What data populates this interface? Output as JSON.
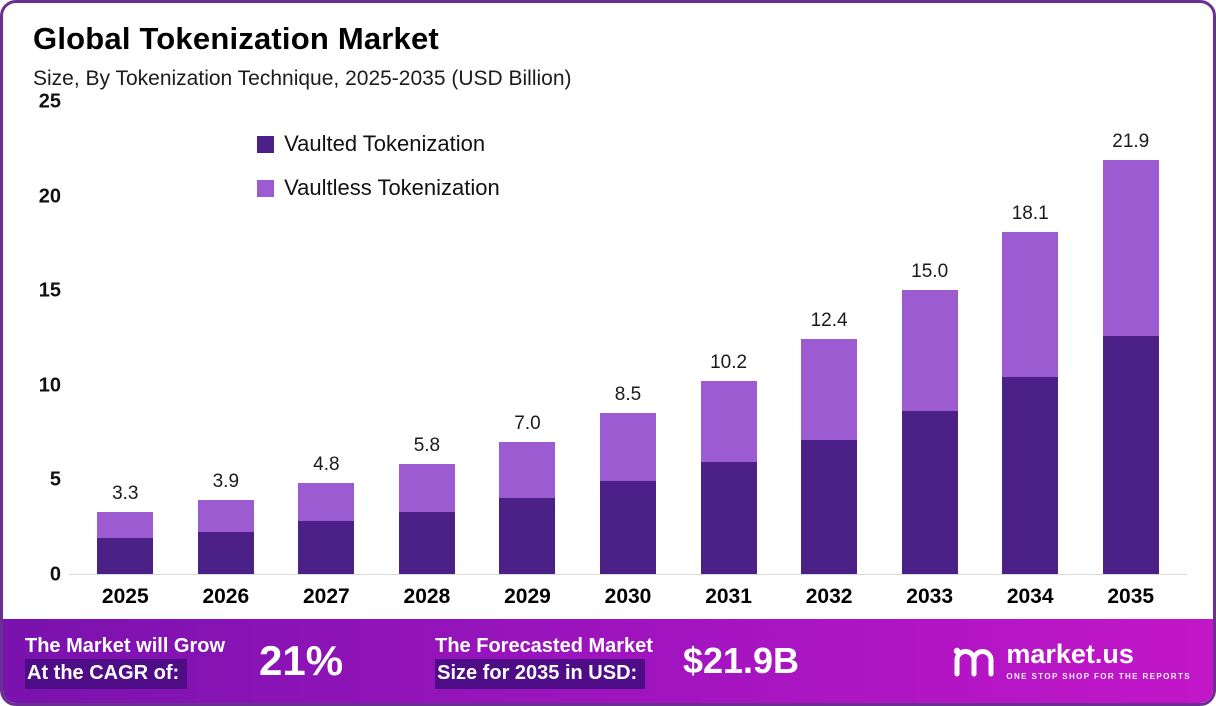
{
  "header": {
    "title": "Global Tokenization Market",
    "subtitle": "Size, By Tokenization Technique, 2025-2035 (USD Billion)"
  },
  "chart_data": {
    "type": "bar",
    "stacked": true,
    "title": "Global Tokenization Market Size, By Tokenization Technique, 2025-2035 (USD Billion)",
    "categories": [
      "2025",
      "2026",
      "2027",
      "2028",
      "2029",
      "2030",
      "2031",
      "2032",
      "2033",
      "2034",
      "2035"
    ],
    "series": [
      {
        "name": "Vaulted Tokenization",
        "color": "#4C2187",
        "values": [
          1.9,
          2.2,
          2.8,
          3.3,
          4.0,
          4.9,
          5.9,
          7.1,
          8.6,
          10.4,
          12.6
        ]
      },
      {
        "name": "Vaultless Tokenization",
        "color": "#9D5BD2",
        "values": [
          1.4,
          1.7,
          2.0,
          2.5,
          3.0,
          3.6,
          4.3,
          5.3,
          6.4,
          7.7,
          9.3
        ]
      }
    ],
    "totals": [
      "3.3",
      "3.9",
      "4.8",
      "5.8",
      "7.0",
      "8.5",
      "10.2",
      "12.4",
      "15.0",
      "18.1",
      "21.9"
    ],
    "yticks": [
      0,
      5,
      10,
      15,
      20,
      25
    ],
    "ylim": [
      0,
      25
    ],
    "grid": false,
    "legend_position": "upper-left-inside"
  },
  "footer": {
    "cagr_label_line1": "The Market will Grow",
    "cagr_label_line2": "At the CAGR of:",
    "cagr_value": "21%",
    "forecast_label_line1": "The Forecasted Market",
    "forecast_label_line2": "Size for 2035 in USD:",
    "forecast_value": "$21.9B",
    "brand": "market.us",
    "tagline": "ONE STOP SHOP FOR THE REPORTS"
  },
  "colors": {
    "vaulted": "#4C2187",
    "vaultless": "#9D5BD2",
    "frame_border": "#6b2f92",
    "footer_gradient_start": "#7a12ad",
    "footer_gradient_end": "#c316c9",
    "footer_highlight": "#4e0c86"
  }
}
